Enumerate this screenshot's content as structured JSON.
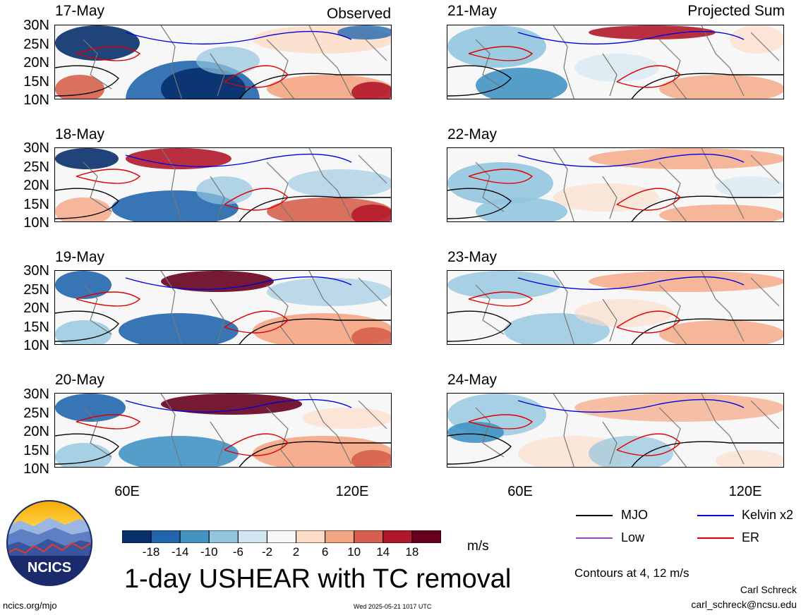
{
  "columns": [
    {
      "heading": "Observed",
      "dates": [
        "17-May",
        "18-May",
        "19-May",
        "20-May"
      ]
    },
    {
      "heading": "Projected Sum",
      "dates": [
        "21-May",
        "22-May",
        "23-May",
        "24-May"
      ]
    }
  ],
  "lat_labels": [
    "30N",
    "25N",
    "20N",
    "15N",
    "10N"
  ],
  "lon_labels": [
    "60E",
    "120E"
  ],
  "colorbar": {
    "colors": [
      "#08306b",
      "#2166ac",
      "#4393c3",
      "#92c5de",
      "#d1e5f0",
      "#f7f7f7",
      "#fddbc7",
      "#f4a582",
      "#d6604d",
      "#b2182b",
      "#67001f"
    ],
    "labels": [
      "-18",
      "-14",
      "-10",
      "-6",
      "-2",
      "2",
      "6",
      "10",
      "14",
      "18"
    ],
    "units": "m/s"
  },
  "title": "1-day USHEAR with TC removal",
  "legend": [
    {
      "name": "MJO",
      "color": "#000000"
    },
    {
      "name": "Kelvin x2",
      "color": "#0000dd"
    },
    {
      "name": "Low",
      "color": "#a040c0"
    },
    {
      "name": "ER",
      "color": "#dd0000"
    }
  ],
  "contours_note": "Contours at 4, 12 m/s",
  "author": "Carl Schreck",
  "email": "carl_schreck@ncsu.edu",
  "website": "ncics.org/mjo",
  "timestamp": "Wed 2025-05-21 1017 UTC",
  "logo_text": "NCICS"
}
